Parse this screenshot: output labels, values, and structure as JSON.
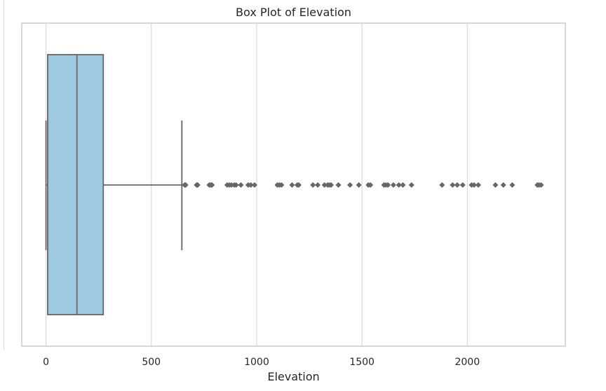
{
  "chart_data": {
    "type": "box",
    "title": "Box Plot of Elevation",
    "xlabel": "Elevation",
    "ylabel": "",
    "xlim": [
      -115,
      2465
    ],
    "xticks": [
      0,
      500,
      1000,
      1500,
      2000
    ],
    "xtick_labels": [
      "0",
      "500",
      "1000",
      "1500",
      "2000"
    ],
    "grid": "vertical",
    "box": {
      "whisker_low": 0,
      "q1": 8,
      "median": 147,
      "q3": 272,
      "whisker_high": 645,
      "fill_color": "#9ecae1",
      "line_color": "#666666"
    },
    "outliers": [
      658,
      663,
      715,
      720,
      775,
      782,
      788,
      860,
      870,
      880,
      893,
      902,
      925,
      960,
      972,
      990,
      1098,
      1108,
      1118,
      1168,
      1193,
      1200,
      1267,
      1290,
      1322,
      1337,
      1345,
      1353,
      1388,
      1443,
      1485,
      1530,
      1540,
      1604,
      1613,
      1623,
      1649,
      1675,
      1694,
      1735,
      1880,
      1930,
      1952,
      1978,
      2020,
      2032,
      2052,
      2133,
      2171,
      2213,
      2332,
      2340,
      2350
    ],
    "outlier_color": "#666666"
  }
}
